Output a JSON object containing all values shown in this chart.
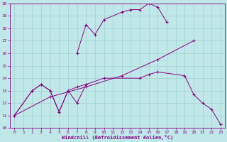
{
  "xlabel": "Windchill (Refroidissement éolien,°C)",
  "xlim": [
    -0.5,
    23.5
  ],
  "ylim": [
    10,
    20
  ],
  "xticks": [
    0,
    1,
    2,
    3,
    4,
    5,
    6,
    7,
    8,
    9,
    10,
    11,
    12,
    13,
    14,
    15,
    16,
    17,
    18,
    19,
    20,
    21,
    22,
    23
  ],
  "yticks": [
    10,
    11,
    12,
    13,
    14,
    15,
    16,
    17,
    18,
    19,
    20
  ],
  "bg_color": "#c0e8e8",
  "line_color": "#880088",
  "series": [
    {
      "x": [
        0,
        2,
        3,
        4,
        5,
        6,
        7,
        8
      ],
      "y": [
        11.0,
        13.0,
        13.5,
        13.0,
        11.3,
        13.0,
        12.0,
        13.5
      ]
    },
    {
      "x": [
        7,
        8,
        9,
        10,
        12,
        13,
        14,
        15,
        16,
        17
      ],
      "y": [
        16.0,
        18.3,
        17.5,
        18.7,
        19.3,
        19.5,
        19.5,
        20.0,
        19.7,
        18.5
      ]
    },
    {
      "x": [
        0,
        4,
        8,
        12,
        16,
        20
      ],
      "y": [
        11.0,
        12.5,
        13.3,
        14.2,
        15.5,
        17.0
      ]
    },
    {
      "x": [
        0,
        2,
        3,
        4,
        5,
        6,
        7,
        8,
        10,
        14,
        15,
        16,
        19,
        20,
        21,
        22,
        23
      ],
      "y": [
        11.0,
        13.0,
        13.5,
        13.0,
        11.3,
        13.0,
        13.3,
        13.5,
        14.0,
        14.0,
        14.3,
        14.5,
        14.2,
        12.7,
        12.0,
        11.5,
        10.3
      ]
    }
  ]
}
